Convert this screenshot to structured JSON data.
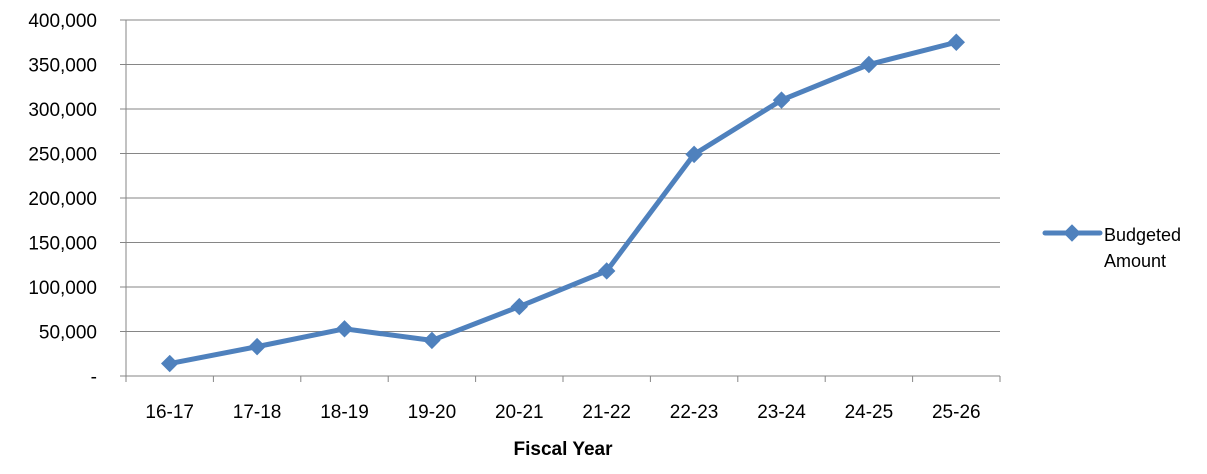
{
  "chart_data": {
    "type": "line",
    "title": "",
    "xlabel": "Fiscal Year",
    "ylabel": "",
    "categories": [
      "16-17",
      "17-18",
      "18-19",
      "19-20",
      "20-21",
      "21-22",
      "22-23",
      "23-24",
      "24-25",
      "25-26"
    ],
    "series": [
      {
        "name": "Budgeted Amount",
        "values": [
          14000,
          33000,
          53000,
          40000,
          78000,
          118000,
          249000,
          310000,
          350000,
          375000
        ],
        "color": "#4F81BD",
        "marker": "diamond"
      }
    ],
    "ylim": [
      0,
      400000
    ],
    "yticks": [
      0,
      50000,
      100000,
      150000,
      200000,
      250000,
      300000,
      350000,
      400000
    ],
    "ytick_labels": [
      "-",
      "50,000",
      "100,000",
      "150,000",
      "200,000",
      "250,000",
      "300,000",
      "350,000",
      "400,000"
    ],
    "grid": true,
    "gridline_color": "#868686",
    "legend_position": "right"
  }
}
